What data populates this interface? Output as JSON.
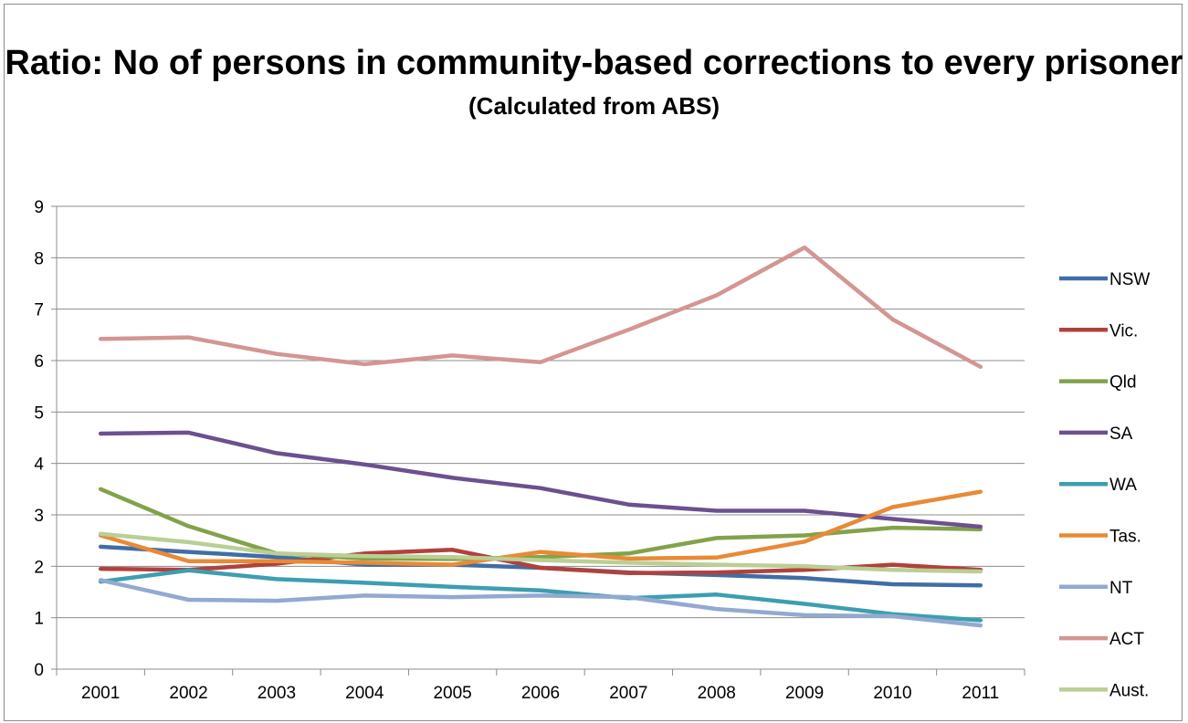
{
  "chart_data": {
    "type": "line",
    "title": "Ratio: No of persons in community-based corrections to every prisoner",
    "subtitle": "(Calculated from ABS)",
    "xlabel": "",
    "ylabel": "",
    "ylim": [
      0,
      9
    ],
    "yticks": [
      "0",
      "1",
      "2",
      "3",
      "4",
      "5",
      "6",
      "7",
      "8",
      "9"
    ],
    "categories": [
      "2001",
      "2002",
      "2003",
      "2004",
      "2005",
      "2006",
      "2007",
      "2008",
      "2009",
      "2010",
      "2011"
    ],
    "grid": "horizontal",
    "legend_position": "right",
    "series": [
      {
        "name": "NSW",
        "color": "#3f6ea6",
        "values": [
          2.38,
          2.28,
          2.18,
          2.03,
          2.03,
          1.97,
          1.88,
          1.83,
          1.77,
          1.65,
          1.63
        ]
      },
      {
        "name": "Vic.",
        "color": "#b1413c",
        "values": [
          1.95,
          1.93,
          2.05,
          2.25,
          2.32,
          1.97,
          1.87,
          1.88,
          1.93,
          2.03,
          1.93
        ]
      },
      {
        "name": "Qld",
        "color": "#82a24a",
        "values": [
          3.5,
          2.78,
          2.25,
          2.15,
          2.14,
          2.18,
          2.25,
          2.55,
          2.6,
          2.75,
          2.72
        ]
      },
      {
        "name": "SA",
        "color": "#6c508f",
        "values": [
          4.58,
          4.6,
          4.2,
          3.98,
          3.72,
          3.52,
          3.2,
          3.08,
          3.08,
          2.92,
          2.77
        ]
      },
      {
        "name": "WA",
        "color": "#3d9eb0",
        "values": [
          1.7,
          1.92,
          1.75,
          1.68,
          1.6,
          1.53,
          1.38,
          1.45,
          1.27,
          1.07,
          0.95
        ]
      },
      {
        "name": "Tas.",
        "color": "#e88a36",
        "values": [
          2.6,
          2.1,
          2.1,
          2.07,
          2.03,
          2.28,
          2.15,
          2.17,
          2.48,
          3.15,
          3.45
        ]
      },
      {
        "name": "NT",
        "color": "#93a9cf",
        "values": [
          1.73,
          1.35,
          1.33,
          1.43,
          1.4,
          1.43,
          1.4,
          1.17,
          1.05,
          1.03,
          0.85
        ]
      },
      {
        "name": "ACT",
        "color": "#d49593",
        "values": [
          6.42,
          6.45,
          6.13,
          5.93,
          6.1,
          5.97,
          6.6,
          7.27,
          8.2,
          6.8,
          5.88
        ]
      },
      {
        "name": "Aust.",
        "color": "#b9cf95",
        "values": [
          2.63,
          2.47,
          2.25,
          2.2,
          2.18,
          2.12,
          2.07,
          2.03,
          2.0,
          1.93,
          1.9
        ]
      }
    ]
  }
}
